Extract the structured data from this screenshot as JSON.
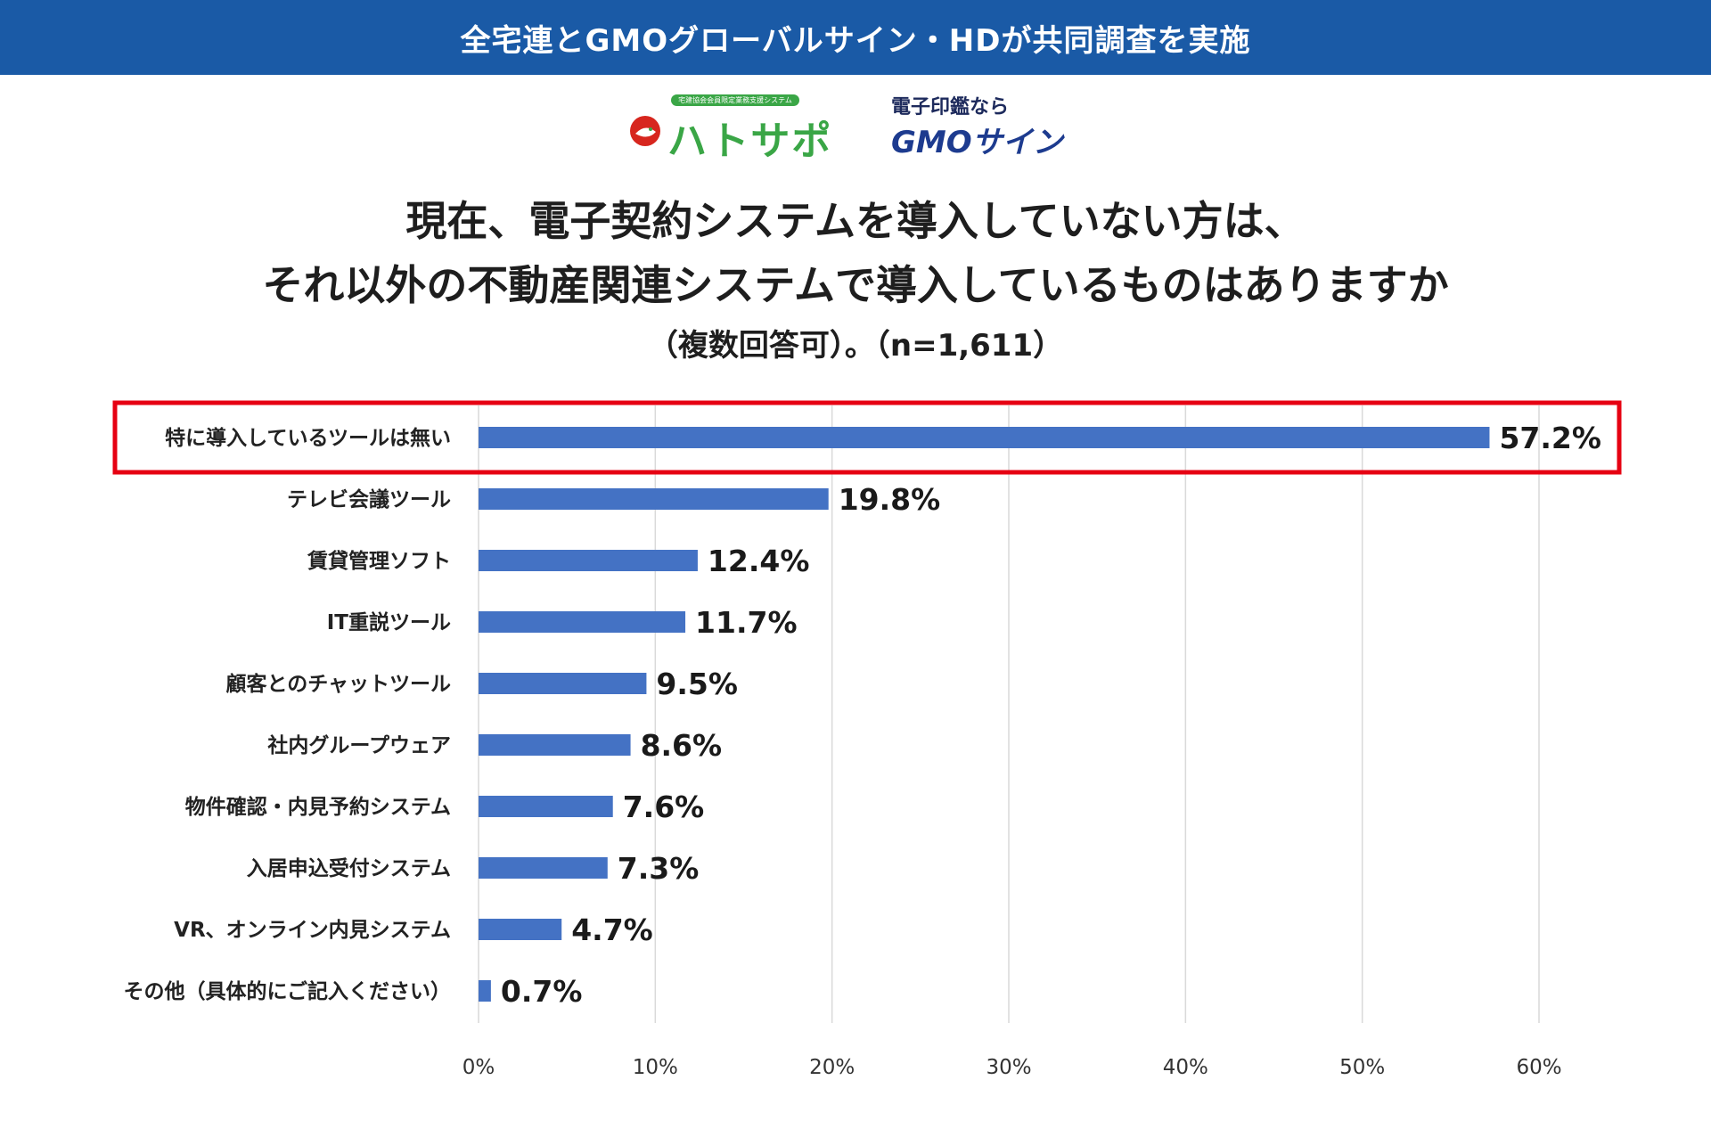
{
  "banner": {
    "title": "全宅連とGMOグローバルサイン・HDが共同調査を実施"
  },
  "logos": {
    "hatosapo_tag": "宅建協会会員限定業務支援システム",
    "hatosapo_name": "ハトサポ",
    "gmo_sub": "電子印鑑なら",
    "gmo_name": "GMOサイン"
  },
  "title_lines": {
    "line1": "現在、電子契約システムを導入していない方は、",
    "line2": "それ以外の不動産関連システムで導入しているものはありますか",
    "line3": "（複数回答可）。（n=1,611）"
  },
  "colors": {
    "banner": "#1a5aa6",
    "bar": "#4472c4",
    "highlight": "#e60012",
    "grid": "#d9d9d9"
  },
  "chart_data": {
    "type": "bar",
    "orientation": "horizontal",
    "title": "現在、電子契約システムを導入していない方は、それ以外の不動産関連システムで導入しているものはありますか（複数回答可）。（n=1,611）",
    "categories": [
      "特に導入しているツールは無い",
      "テレビ会議ツール",
      "賃貸管理ソフト",
      "IT重説ツール",
      "顧客とのチャットツール",
      "社内グループウェア",
      "物件確認・内見予約システム",
      "入居申込受付システム",
      "VR、オンライン内見システム",
      "その他（具体的にご記入ください）"
    ],
    "values": [
      57.2,
      19.8,
      12.4,
      11.7,
      9.5,
      8.6,
      7.6,
      7.3,
      4.7,
      0.7
    ],
    "value_labels": [
      "57.2%",
      "19.8%",
      "12.4%",
      "11.7%",
      "9.5%",
      "8.6%",
      "7.6%",
      "7.3%",
      "4.7%",
      "0.7%"
    ],
    "xlim": [
      0,
      60
    ],
    "xticks": [
      0,
      10,
      20,
      30,
      40,
      50,
      60
    ],
    "xtick_labels": [
      "0%",
      "10%",
      "20%",
      "30%",
      "40%",
      "50%",
      "60%"
    ],
    "grid": true,
    "highlighted_category": "特に導入しているツールは無い",
    "unit": "%"
  }
}
